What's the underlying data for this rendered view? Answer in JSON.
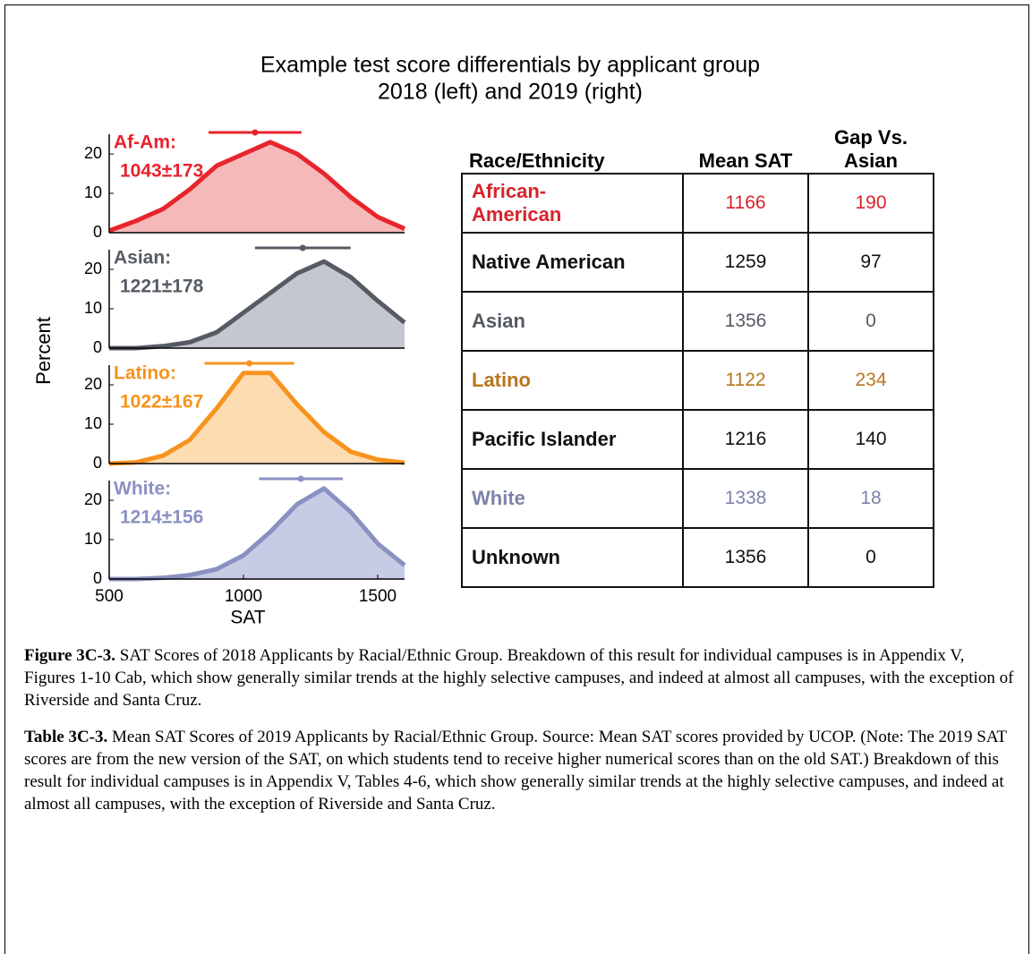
{
  "title": "Example test score differentials by applicant group",
  "subtitle": "2018 (left) and 2019 (right)",
  "ylabel": "Percent",
  "chart_data": [
    {
      "type": "area",
      "label": "Af-Am:",
      "mean": 1043,
      "sd": 173,
      "stat_label": "1043±173",
      "color": "#e8242d",
      "fill": "#f5b9b9",
      "x": [
        500,
        600,
        700,
        800,
        900,
        1000,
        1100,
        1200,
        1300,
        1400,
        1500,
        1600
      ],
      "values": [
        0.5,
        3,
        6,
        11,
        17,
        20,
        23,
        20,
        15,
        9,
        4,
        1
      ],
      "xlim": [
        500,
        1600
      ],
      "ylim": [
        0,
        25
      ],
      "yticks": [
        0,
        10,
        20
      ]
    },
    {
      "type": "area",
      "label": "Asian:",
      "mean": 1221,
      "sd": 178,
      "stat_label": "1221±178",
      "color": "#565b63",
      "fill": "#c4c7cd",
      "x": [
        500,
        600,
        700,
        800,
        900,
        1000,
        1100,
        1200,
        1300,
        1400,
        1500,
        1600
      ],
      "values": [
        0,
        0,
        0.5,
        1.5,
        4,
        9,
        14,
        19,
        22,
        18,
        12,
        6.5
      ],
      "xlim": [
        500,
        1600
      ],
      "ylim": [
        0,
        25
      ],
      "yticks": [
        0,
        10,
        20
      ]
    },
    {
      "type": "area",
      "label": "Latino:",
      "mean": 1022,
      "sd": 167,
      "stat_label": "1022±167",
      "color": "#f7931e",
      "fill": "#fddcb2",
      "x": [
        500,
        600,
        700,
        800,
        900,
        1000,
        1100,
        1200,
        1300,
        1400,
        1500,
        1600
      ],
      "values": [
        0,
        0.3,
        2,
        6,
        14,
        23,
        23,
        15,
        8,
        3,
        1,
        0.2
      ],
      "xlim": [
        500,
        1600
      ],
      "ylim": [
        0,
        25
      ],
      "yticks": [
        0,
        10,
        20
      ]
    },
    {
      "type": "area",
      "label": "White:",
      "mean": 1214,
      "sd": 156,
      "stat_label": "1214±156",
      "color": "#8a91c2",
      "fill": "#c7cbe4",
      "x": [
        500,
        600,
        700,
        800,
        900,
        1000,
        1100,
        1200,
        1300,
        1400,
        1500,
        1600
      ],
      "values": [
        0,
        0,
        0.3,
        1,
        2.5,
        6,
        12,
        19,
        23,
        17,
        9,
        3.5
      ],
      "xlim": [
        500,
        1600
      ],
      "ylim": [
        0,
        25
      ],
      "yticks": [
        0,
        10,
        20
      ],
      "xticks": [
        500,
        1000,
        1500
      ],
      "xlabel": "SAT"
    }
  ],
  "table": {
    "columns": [
      "Race/Ethnicity",
      "Mean SAT",
      "Gap Vs. Asian"
    ],
    "rows": [
      {
        "group": "African-American",
        "mean": "1166",
        "gap": "190",
        "color": "#d8232a"
      },
      {
        "group": "Native American",
        "mean": "1259",
        "gap": "97",
        "color": "#111111"
      },
      {
        "group": "Asian",
        "mean": "1356",
        "gap": "0",
        "color": "#555a62"
      },
      {
        "group": "Latino",
        "mean": "1122",
        "gap": "234",
        "color": "#b8761f"
      },
      {
        "group": "Pacific Islander",
        "mean": "1216",
        "gap": "140",
        "color": "#111111"
      },
      {
        "group": "White",
        "mean": "1338",
        "gap": "18",
        "color": "#7d82aa"
      },
      {
        "group": "Unknown",
        "mean": "1356",
        "gap": "0",
        "color": "#111111"
      }
    ]
  },
  "captions": [
    {
      "lead": "Figure 3C-3.",
      "text": "SAT Scores of 2018 Applicants by Racial/Ethnic Group. Breakdown of this result for individual campuses is in Appendix V, Figures 1-10 Cab, which show generally similar trends at the highly selective campuses, and indeed at almost all campuses, with the exception of Riverside and Santa Cruz."
    },
    {
      "lead": "Table 3C-3.",
      "text": "Mean SAT Scores of 2019 Applicants by Racial/Ethnic Group. Source: Mean SAT scores provided by UCOP. (Note: The 2019 SAT scores are from the new version of the SAT, on which students tend to receive higher numerical scores than on the old SAT.) Breakdown of this result for individual campuses is in Appendix V, Tables 4-6, which show generally similar trends at the highly selective campuses, and indeed at almost all campuses, with the exception of Riverside and Santa Cruz."
    }
  ]
}
